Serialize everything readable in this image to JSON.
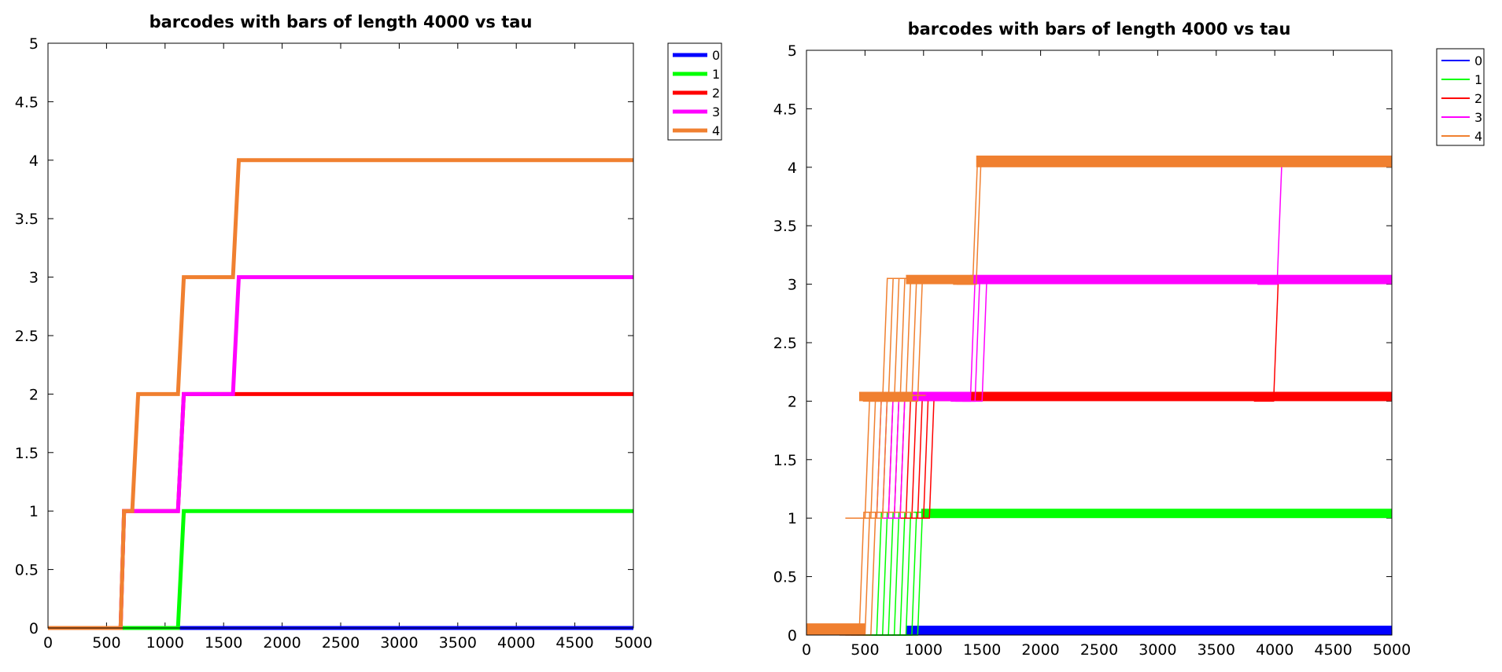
{
  "chart_data": [
    {
      "type": "line",
      "title": "barcodes with bars of length 4000 vs tau",
      "xlabel": "",
      "ylabel": "",
      "xlim": [
        0,
        5000
      ],
      "ylim": [
        0,
        5
      ],
      "xticks": [
        "0",
        "500",
        "1000",
        "1500",
        "2000",
        "2500",
        "3000",
        "3500",
        "4000",
        "4500",
        "5000"
      ],
      "yticks": [
        "0",
        "0.5",
        "1",
        "1.5",
        "2",
        "2.5",
        "3",
        "3.5",
        "4",
        "4.5",
        "5"
      ],
      "legend_position": "outside-top-right",
      "line_style": "thick",
      "series": [
        {
          "name": "0",
          "color": "#0000ff",
          "x": [
            0,
            5000
          ],
          "y": [
            0,
            0
          ]
        },
        {
          "name": "1",
          "color": "#00ff00",
          "x": [
            0,
            1110,
            1160,
            5000
          ],
          "y": [
            0,
            0,
            1,
            1
          ]
        },
        {
          "name": "2",
          "color": "#ff0000",
          "x": [
            0,
            620,
            650,
            1110,
            1160,
            5000
          ],
          "y": [
            0,
            0,
            1,
            1,
            2,
            2
          ]
        },
        {
          "name": "3",
          "color": "#ff00ff",
          "x": [
            0,
            620,
            650,
            1110,
            1160,
            1580,
            1630,
            5000
          ],
          "y": [
            0,
            0,
            1,
            1,
            2,
            2,
            3,
            3
          ]
        },
        {
          "name": "4",
          "color": "#f08030",
          "x": [
            0,
            620,
            650,
            720,
            770,
            1110,
            1160,
            1580,
            1630,
            5000
          ],
          "y": [
            0,
            0,
            1,
            1,
            2,
            2,
            3,
            3,
            4,
            4
          ]
        }
      ]
    },
    {
      "type": "line",
      "title": "barcodes with bars of length 4000 vs tau",
      "xlabel": "",
      "ylabel": "",
      "xlim": [
        0,
        5000
      ],
      "ylim": [
        0,
        5
      ],
      "xticks": [
        "0",
        "500",
        "1000",
        "1500",
        "2000",
        "2500",
        "3000",
        "3500",
        "4000",
        "4500",
        "5000"
      ],
      "yticks": [
        "0",
        "0.5",
        "1",
        "1.5",
        "2",
        "2.5",
        "3",
        "3.5",
        "4",
        "4.5",
        "5"
      ],
      "legend_position": "outside-top-right",
      "line_style": "thin, many overlapping runs",
      "series": [
        {
          "name": "0",
          "color": "#0000ff",
          "bands": [
            {
              "from": 850,
              "to": 5000,
              "y": 0,
              "spread": 0.08
            }
          ],
          "steps": []
        },
        {
          "name": "1",
          "color": "#00ff00",
          "bands": [
            {
              "from": 980,
              "to": 5000,
              "y": 1,
              "spread": 0.08
            }
          ],
          "steps": [
            [
              600,
              0,
              1
            ],
            [
              650,
              0,
              1
            ],
            [
              700,
              0,
              1
            ],
            [
              750,
              0,
              1
            ],
            [
              800,
              0,
              1
            ],
            [
              850,
              0,
              1
            ],
            [
              900,
              0,
              1
            ],
            [
              950,
              0,
              1
            ]
          ]
        },
        {
          "name": "2",
          "color": "#ff0000",
          "bands": [
            {
              "from": 1000,
              "to": 5000,
              "y": 2,
              "spread": 0.08
            }
          ],
          "steps": [
            [
              700,
              1,
              2
            ],
            [
              750,
              1,
              2
            ],
            [
              800,
              1,
              2
            ],
            [
              850,
              1,
              2
            ],
            [
              900,
              1,
              2
            ],
            [
              950,
              1,
              2
            ],
            [
              1000,
              1,
              2
            ],
            [
              1050,
              1,
              2
            ],
            [
              3990,
              2,
              3
            ]
          ]
        },
        {
          "name": "3",
          "color": "#ff00ff",
          "bands": [
            {
              "from": 1400,
              "to": 5000,
              "y": 3,
              "spread": 0.08
            },
            {
              "from": 700,
              "to": 1400,
              "y": 2,
              "spread": 0.08
            }
          ],
          "steps": [
            [
              600,
              1,
              2
            ],
            [
              650,
              1,
              2
            ],
            [
              700,
              1,
              2
            ],
            [
              750,
              1,
              2
            ],
            [
              800,
              1,
              2
            ],
            [
              1400,
              2,
              3
            ],
            [
              1440,
              2,
              3
            ],
            [
              1500,
              2,
              3
            ],
            [
              4020,
              3,
              4
            ]
          ]
        },
        {
          "name": "4",
          "color": "#f08030",
          "bands": [
            {
              "from": 1450,
              "to": 5000,
              "y": 4,
              "spread": 0.1
            },
            {
              "from": 850,
              "to": 1420,
              "y": 3,
              "spread": 0.08
            },
            {
              "from": 450,
              "to": 900,
              "y": 2,
              "spread": 0.08
            },
            {
              "from": 0,
              "to": 500,
              "y": 0,
              "spread": 0.1
            }
          ],
          "steps": [
            [
              450,
              0,
              1
            ],
            [
              500,
              0,
              1
            ],
            [
              550,
              0,
              1
            ],
            [
              500,
              1,
              2
            ],
            [
              550,
              1,
              2
            ],
            [
              600,
              1,
              2
            ],
            [
              650,
              1,
              2
            ],
            [
              650,
              2,
              3
            ],
            [
              700,
              2,
              3
            ],
            [
              750,
              2,
              3
            ],
            [
              800,
              2,
              3
            ],
            [
              850,
              2,
              3
            ],
            [
              900,
              2,
              3
            ],
            [
              950,
              2,
              3
            ],
            [
              1420,
              3,
              4
            ],
            [
              1450,
              3,
              4
            ]
          ]
        }
      ]
    }
  ]
}
